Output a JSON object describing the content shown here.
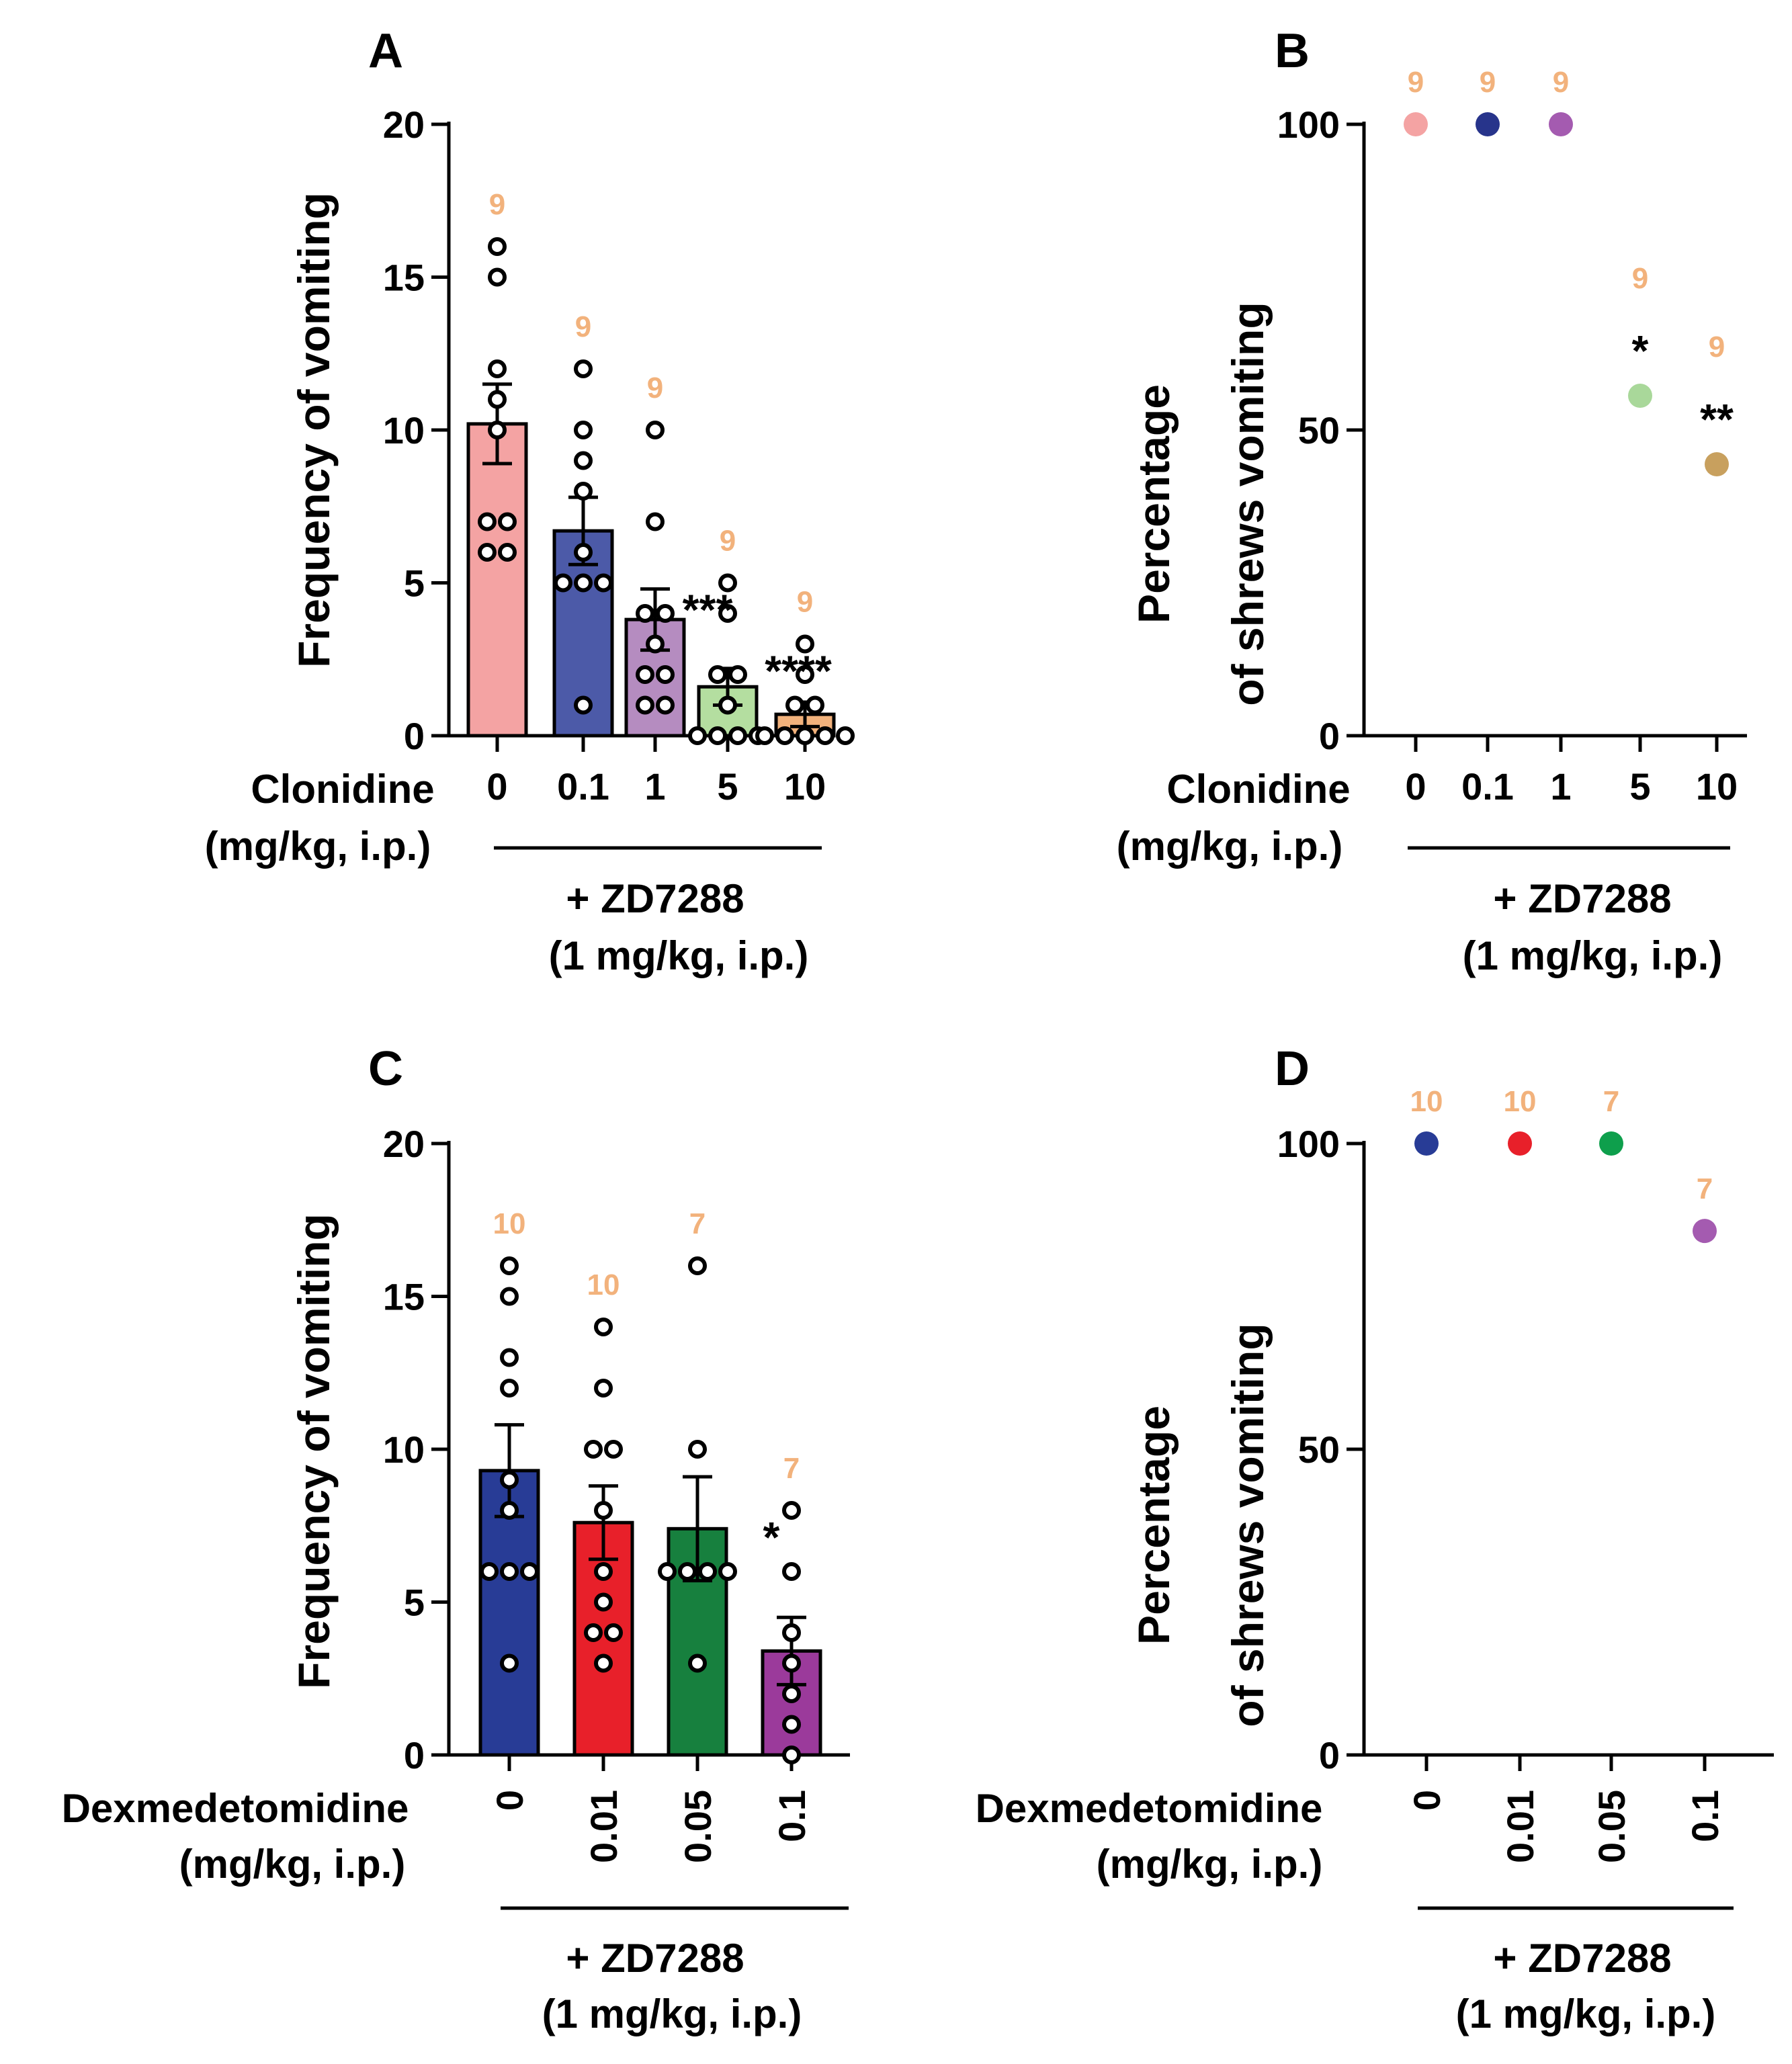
{
  "colors": {
    "n_label": "#F2B27C",
    "axis": "#000000",
    "dot_fill": "#ffffff"
  },
  "chart_data": [
    {
      "panel": "A",
      "type": "bar",
      "ylabel": "Frequency of vomiting",
      "ylim": [
        0,
        20
      ],
      "yticks": [
        0,
        5,
        10,
        15,
        20
      ],
      "xlabel": "Clonidine",
      "xlabel_units": "(mg/kg, i.p.)",
      "categories": [
        "0",
        "0.1",
        "1",
        "5",
        "10"
      ],
      "values": [
        10.2,
        6.7,
        3.8,
        1.6,
        0.7
      ],
      "sem": [
        1.3,
        1.1,
        1.0,
        0.6,
        0.4
      ],
      "colors": [
        "#F4A3A3",
        "#4C5AA8",
        "#B58CC0",
        "#B4DEA0",
        "#F2B27C"
      ],
      "points": [
        [
          16,
          15,
          12,
          11,
          10,
          7,
          7,
          6,
          6
        ],
        [
          12,
          10,
          9,
          8,
          6,
          5,
          5,
          5,
          1
        ],
        [
          10,
          7,
          4,
          3,
          2,
          2,
          1,
          1,
          4
        ],
        [
          5,
          4,
          2,
          2,
          1,
          0,
          0,
          0,
          0
        ],
        [
          3,
          2,
          1,
          1,
          0,
          0,
          0,
          0,
          0
        ]
      ],
      "n": [
        "9",
        "9",
        "9",
        "9",
        "9"
      ],
      "significance": [
        "",
        "",
        "",
        "***",
        "****"
      ],
      "bracket_label": "+ ZD7288",
      "bracket_units": "(1 mg/kg, i.p.)"
    },
    {
      "panel": "B",
      "type": "scatter",
      "ylabel_line1": "Percentage",
      "ylabel_line2": "of shrews vomiting",
      "ylim": [
        0,
        100
      ],
      "yticks": [
        0,
        50,
        100
      ],
      "xlabel": "Clonidine",
      "xlabel_units": "(mg/kg, i.p.)",
      "categories": [
        "0",
        "0.1",
        "1",
        "5",
        "10"
      ],
      "values": [
        100,
        100,
        100,
        55.6,
        44.4
      ],
      "colors": [
        "#F4A3A3",
        "#27348B",
        "#A45BB0",
        "#A9D89A",
        "#C8A05E"
      ],
      "n": [
        "9",
        "9",
        "9",
        "9",
        "9"
      ],
      "significance": [
        "",
        "",
        "",
        "*",
        "**"
      ],
      "bracket_label": "+ ZD7288",
      "bracket_units": "(1 mg/kg, i.p.)"
    },
    {
      "panel": "C",
      "type": "bar",
      "ylabel": "Frequency of vomiting",
      "ylim": [
        0,
        20
      ],
      "yticks": [
        0,
        5,
        10,
        15,
        20
      ],
      "xlabel": "Dexmedetomidine",
      "xlabel_units": "(mg/kg, i.p.)",
      "categories": [
        "0",
        "0.01",
        "0.05",
        "0.1"
      ],
      "values": [
        9.3,
        7.6,
        7.4,
        3.4
      ],
      "sem": [
        1.5,
        1.2,
        1.7,
        1.1
      ],
      "colors": [
        "#283C96",
        "#E8202A",
        "#17803E",
        "#9B3A9B"
      ],
      "points": [
        [
          16,
          15,
          13,
          12,
          9,
          8,
          6,
          6,
          6,
          3
        ],
        [
          14,
          12,
          10,
          10,
          8,
          6,
          4,
          4,
          3,
          5
        ],
        [
          16,
          10,
          6,
          6,
          6,
          3,
          6
        ],
        [
          8,
          6,
          4,
          3,
          2,
          1,
          0
        ]
      ],
      "n": [
        "10",
        "10",
        "7",
        "7"
      ],
      "significance": [
        "",
        "",
        "",
        "*"
      ],
      "bracket_label": "+ ZD7288",
      "bracket_units": "(1 mg/kg, i.p.)"
    },
    {
      "panel": "D",
      "type": "scatter",
      "ylabel_line1": "Percentage",
      "ylabel_line2": "of shrews vomiting",
      "ylim": [
        0,
        100
      ],
      "yticks": [
        0,
        50,
        100
      ],
      "xlabel": "Dexmedetomidine",
      "xlabel_units": "(mg/kg, i.p.)",
      "categories": [
        "0",
        "0.01",
        "0.05",
        "0.1"
      ],
      "values": [
        100,
        100,
        100,
        85.7
      ],
      "colors": [
        "#283C96",
        "#E8202A",
        "#0E9F4C",
        "#A45BB0"
      ],
      "n": [
        "10",
        "10",
        "7",
        "7"
      ],
      "significance": [
        "",
        "",
        "",
        ""
      ],
      "bracket_label": "+ ZD7288",
      "bracket_units": "(1 mg/kg, i.p.)"
    }
  ]
}
